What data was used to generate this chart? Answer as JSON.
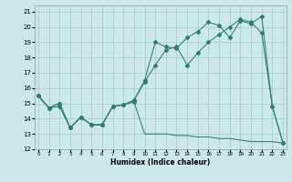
{
  "xlabel": "Humidex (Indice chaleur)",
  "bg_color": "#cce8e8",
  "grid_color": "#aacece",
  "line_color": "#2d7d6e",
  "xlim": [
    0,
    23
  ],
  "ylim": [
    12,
    21.4
  ],
  "yticks": [
    12,
    13,
    14,
    15,
    16,
    17,
    18,
    19,
    20,
    21
  ],
  "xticks": [
    0,
    1,
    2,
    3,
    4,
    5,
    6,
    7,
    8,
    9,
    10,
    11,
    12,
    13,
    14,
    15,
    16,
    17,
    18,
    19,
    20,
    21,
    22,
    23
  ],
  "line1_x": [
    0,
    1,
    2,
    3,
    4,
    5,
    6,
    7,
    8,
    9,
    10,
    11,
    12,
    13,
    14,
    15,
    16,
    17,
    18,
    19,
    20,
    21,
    22,
    23
  ],
  "line1_y": [
    15.5,
    14.7,
    14.8,
    13.4,
    14.1,
    13.6,
    13.6,
    14.8,
    14.9,
    15.1,
    13.0,
    13.0,
    13.0,
    12.9,
    12.9,
    12.8,
    12.8,
    12.7,
    12.7,
    12.6,
    12.5,
    12.5,
    12.5,
    12.4
  ],
  "line1_marker_x": [
    0,
    1,
    2,
    3,
    4,
    5,
    6,
    7,
    8,
    9
  ],
  "line1_marker_y": [
    15.5,
    14.7,
    14.8,
    13.4,
    14.1,
    13.6,
    13.6,
    14.8,
    14.9,
    15.1
  ],
  "line2_x": [
    0,
    1,
    2,
    3,
    4,
    5,
    6,
    7,
    8,
    9,
    10,
    11,
    12,
    13,
    14,
    15,
    16,
    17,
    18,
    19,
    20,
    21,
    22,
    23
  ],
  "line2_y": [
    15.5,
    14.7,
    15.0,
    13.4,
    14.1,
    13.6,
    13.6,
    14.8,
    14.9,
    15.2,
    16.4,
    17.5,
    18.5,
    18.7,
    17.5,
    18.3,
    19.0,
    19.5,
    20.0,
    20.5,
    20.3,
    19.6,
    14.8,
    12.4
  ],
  "line3_x": [
    0,
    1,
    2,
    3,
    4,
    5,
    6,
    7,
    8,
    9,
    10,
    11,
    12,
    13,
    14,
    15,
    16,
    17,
    18,
    19,
    20,
    21,
    22,
    23
  ],
  "line3_y": [
    15.5,
    14.7,
    15.0,
    13.4,
    14.1,
    13.6,
    13.6,
    14.8,
    14.9,
    15.2,
    16.5,
    19.0,
    18.7,
    18.6,
    19.3,
    19.7,
    20.3,
    20.1,
    19.3,
    20.4,
    20.2,
    20.7,
    14.8,
    12.4
  ]
}
